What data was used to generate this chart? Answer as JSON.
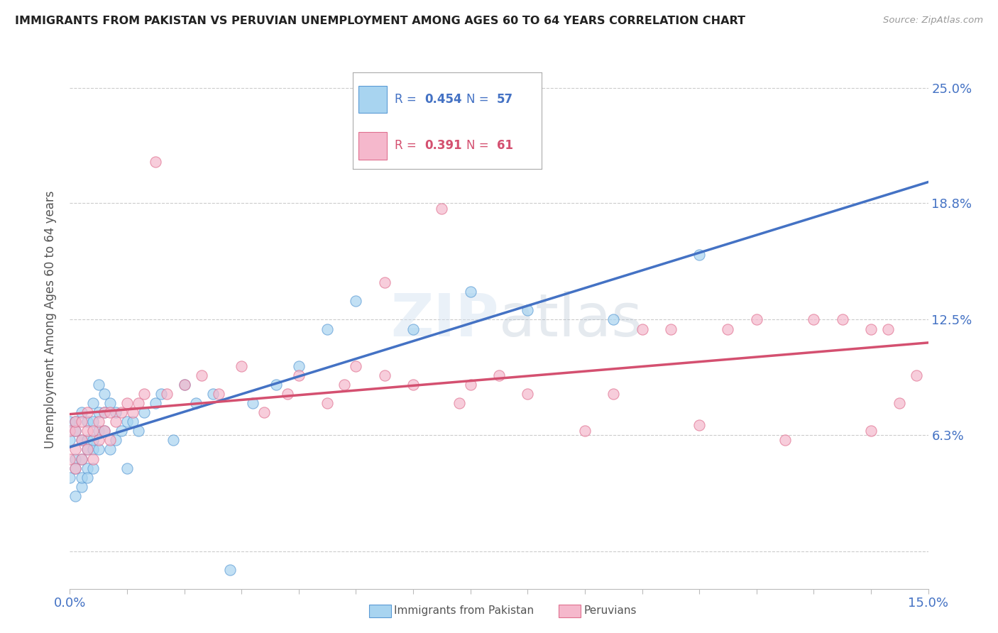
{
  "title": "IMMIGRANTS FROM PAKISTAN VS PERUVIAN UNEMPLOYMENT AMONG AGES 60 TO 64 YEARS CORRELATION CHART",
  "source": "Source: ZipAtlas.com",
  "ylabel": "Unemployment Among Ages 60 to 64 years",
  "xlim": [
    0.0,
    0.15
  ],
  "ylim": [
    -0.02,
    0.27
  ],
  "ytick_values": [
    0.0,
    0.063,
    0.125,
    0.188,
    0.25
  ],
  "ytick_labels": [
    "",
    "6.3%",
    "12.5%",
    "18.8%",
    "25.0%"
  ],
  "series1_name": "Immigrants from Pakistan",
  "series1_R": 0.454,
  "series1_N": 57,
  "series2_name": "Peruvians",
  "series2_R": 0.391,
  "series2_N": 61,
  "scatter1_fill": "#a8d4f0",
  "scatter1_edge": "#5b9bd5",
  "scatter2_fill": "#f5b8cc",
  "scatter2_edge": "#e07090",
  "trendline1_color": "#4472C4",
  "trendline2_color": "#D45070",
  "watermark": "ZIPatlas",
  "background_color": "#ffffff",
  "grid_color": "#cccccc",
  "series1_x": [
    0.0,
    0.0,
    0.0,
    0.001,
    0.001,
    0.001,
    0.001,
    0.001,
    0.002,
    0.002,
    0.002,
    0.002,
    0.002,
    0.003,
    0.003,
    0.003,
    0.003,
    0.003,
    0.004,
    0.004,
    0.004,
    0.004,
    0.004,
    0.005,
    0.005,
    0.005,
    0.005,
    0.006,
    0.006,
    0.006,
    0.007,
    0.007,
    0.008,
    0.008,
    0.009,
    0.01,
    0.01,
    0.011,
    0.012,
    0.013,
    0.015,
    0.016,
    0.018,
    0.02,
    0.022,
    0.025,
    0.028,
    0.032,
    0.036,
    0.04,
    0.045,
    0.05,
    0.06,
    0.07,
    0.08,
    0.095,
    0.11
  ],
  "series1_y": [
    0.04,
    0.06,
    0.07,
    0.03,
    0.05,
    0.065,
    0.045,
    0.07,
    0.035,
    0.05,
    0.06,
    0.075,
    0.04,
    0.045,
    0.06,
    0.055,
    0.07,
    0.04,
    0.045,
    0.055,
    0.07,
    0.06,
    0.08,
    0.055,
    0.065,
    0.075,
    0.09,
    0.065,
    0.075,
    0.085,
    0.055,
    0.08,
    0.06,
    0.075,
    0.065,
    0.07,
    0.045,
    0.07,
    0.065,
    0.075,
    0.08,
    0.085,
    0.06,
    0.09,
    0.08,
    0.085,
    -0.01,
    0.08,
    0.09,
    0.1,
    0.12,
    0.135,
    0.12,
    0.14,
    0.13,
    0.125,
    0.16
  ],
  "series2_x": [
    0.0,
    0.0,
    0.001,
    0.001,
    0.001,
    0.001,
    0.002,
    0.002,
    0.002,
    0.003,
    0.003,
    0.003,
    0.004,
    0.004,
    0.005,
    0.005,
    0.006,
    0.006,
    0.007,
    0.007,
    0.008,
    0.009,
    0.01,
    0.011,
    0.012,
    0.013,
    0.015,
    0.017,
    0.02,
    0.023,
    0.026,
    0.03,
    0.034,
    0.038,
    0.04,
    0.045,
    0.048,
    0.05,
    0.055,
    0.055,
    0.06,
    0.065,
    0.068,
    0.07,
    0.075,
    0.08,
    0.09,
    0.095,
    0.1,
    0.105,
    0.11,
    0.115,
    0.12,
    0.125,
    0.13,
    0.135,
    0.14,
    0.14,
    0.143,
    0.145,
    0.148
  ],
  "series2_y": [
    0.05,
    0.065,
    0.045,
    0.055,
    0.065,
    0.07,
    0.05,
    0.06,
    0.07,
    0.055,
    0.065,
    0.075,
    0.05,
    0.065,
    0.06,
    0.07,
    0.065,
    0.075,
    0.06,
    0.075,
    0.07,
    0.075,
    0.08,
    0.075,
    0.08,
    0.085,
    0.21,
    0.085,
    0.09,
    0.095,
    0.085,
    0.1,
    0.075,
    0.085,
    0.095,
    0.08,
    0.09,
    0.1,
    0.095,
    0.145,
    0.09,
    0.185,
    0.08,
    0.09,
    0.095,
    0.085,
    0.065,
    0.085,
    0.12,
    0.12,
    0.068,
    0.12,
    0.125,
    0.06,
    0.125,
    0.125,
    0.12,
    0.065,
    0.12,
    0.08,
    0.095
  ]
}
